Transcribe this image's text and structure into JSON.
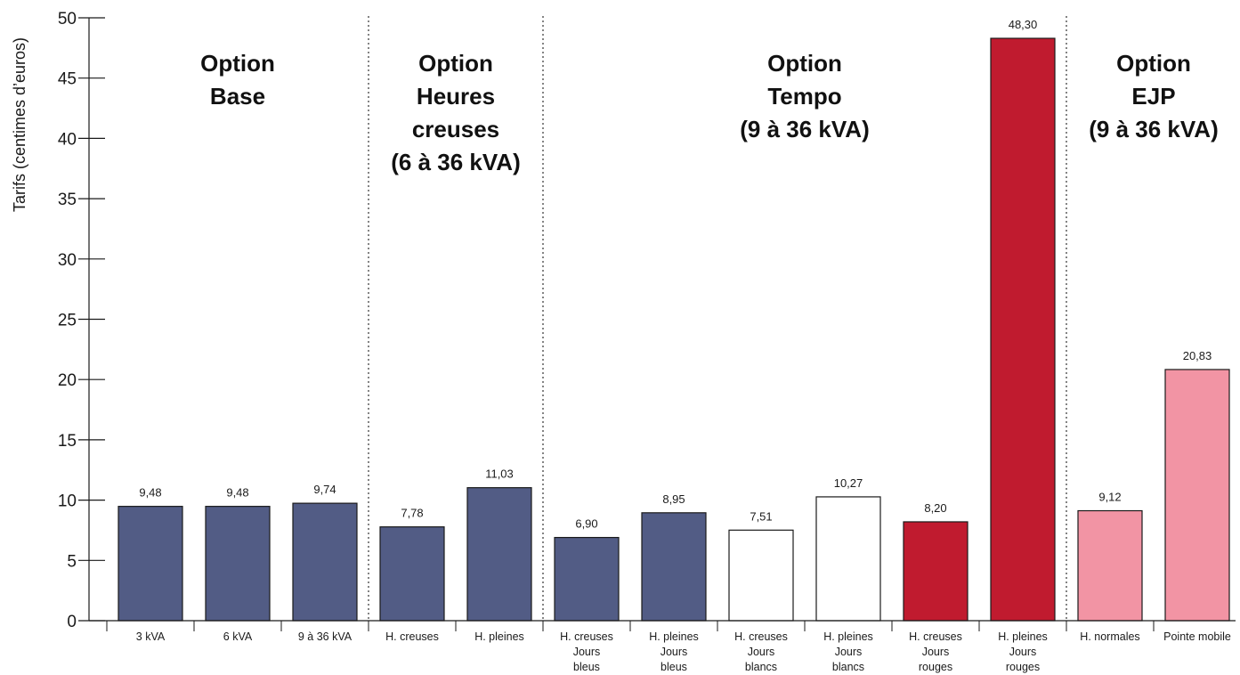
{
  "chart_data": {
    "type": "bar",
    "title": "",
    "xlabel": "",
    "ylabel": "Tarifs (centimes d’euros)",
    "ylim": [
      0,
      50
    ],
    "yticks": [
      0,
      5,
      10,
      15,
      20,
      25,
      30,
      35,
      40,
      45,
      50
    ],
    "grid": false,
    "legend": "none",
    "bars": [
      {
        "category": [
          "3 kVA"
        ],
        "value": 9.48,
        "value_label": "9,48",
        "color": "#525c85"
      },
      {
        "category": [
          "6 kVA"
        ],
        "value": 9.48,
        "value_label": "9,48",
        "color": "#525c85"
      },
      {
        "category": [
          "9 à 36 kVA"
        ],
        "value": 9.74,
        "value_label": "9,74",
        "color": "#525c85"
      },
      {
        "category": [
          "H. creuses"
        ],
        "value": 7.78,
        "value_label": "7,78",
        "color": "#525c85"
      },
      {
        "category": [
          "H. pleines"
        ],
        "value": 11.03,
        "value_label": "11,03",
        "color": "#525c85"
      },
      {
        "category": [
          "H. creuses",
          "Jours",
          "bleus"
        ],
        "value": 6.9,
        "value_label": "6,90",
        "color": "#525c85"
      },
      {
        "category": [
          "H. pleines",
          "Jours",
          "bleus"
        ],
        "value": 8.95,
        "value_label": "8,95",
        "color": "#525c85"
      },
      {
        "category": [
          "H. creuses",
          "Jours",
          "blancs"
        ],
        "value": 7.51,
        "value_label": "7,51",
        "color": "#ffffff"
      },
      {
        "category": [
          "H. pleines",
          "Jours",
          "blancs"
        ],
        "value": 10.27,
        "value_label": "10,27",
        "color": "#ffffff"
      },
      {
        "category": [
          "H. creuses",
          "Jours",
          "rouges"
        ],
        "value": 8.2,
        "value_label": "8,20",
        "color": "#c01b2f"
      },
      {
        "category": [
          "H. pleines",
          "Jours",
          "rouges"
        ],
        "value": 48.3,
        "value_label": "48,30",
        "color": "#c01b2f"
      },
      {
        "category": [
          "H. normales"
        ],
        "value": 9.12,
        "value_label": "9,12",
        "color": "#f294a4"
      },
      {
        "category": [
          "Pointe mobile"
        ],
        "value": 20.83,
        "value_label": "20,83",
        "color": "#f294a4"
      }
    ],
    "groups": [
      {
        "lines": [
          "Option",
          "Base"
        ],
        "first_bar": 0,
        "last_bar": 2
      },
      {
        "lines": [
          "Option",
          "Heures",
          "creuses",
          "(6 à 36 kVA)"
        ],
        "first_bar": 3,
        "last_bar": 4
      },
      {
        "lines": [
          "Option",
          "Tempo",
          "(9 à 36 kVA)"
        ],
        "first_bar": 5,
        "last_bar": 10
      },
      {
        "lines": [
          "Option",
          "EJP",
          "(9 à 36 kVA)"
        ],
        "first_bar": 11,
        "last_bar": 12
      }
    ],
    "bar_outline_color": "#1a1a1a",
    "separator_color": "#333333"
  }
}
